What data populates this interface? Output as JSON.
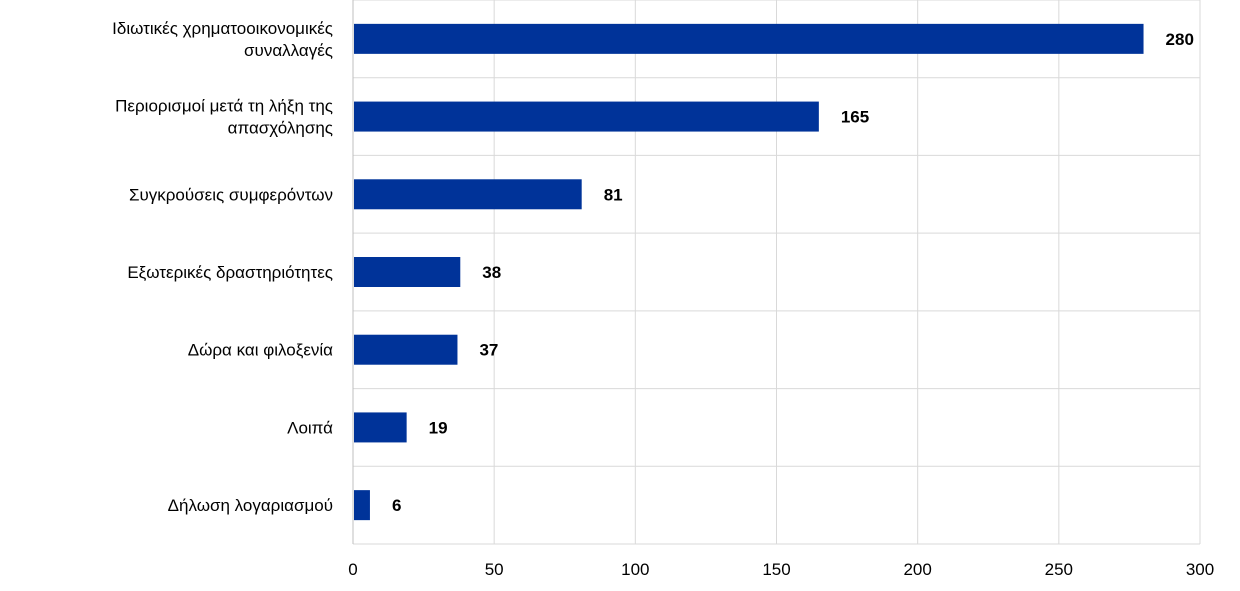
{
  "chart_data": {
    "type": "bar",
    "orientation": "horizontal",
    "categories": [
      [
        "Ιδιωτικές χρηματοοικονομικές",
        "συναλλαγές"
      ],
      [
        "Περιορισμοί μετά τη λήξη της",
        "απασχόλησης"
      ],
      [
        "Συγκρούσεις συμφερόντων"
      ],
      [
        "Εξωτερικές δραστηριότητες"
      ],
      [
        "Δώρα και φιλοξενία"
      ],
      [
        "Λοιπά"
      ],
      [
        "Δήλωση λογαριασμού"
      ]
    ],
    "values": [
      280,
      165,
      81,
      38,
      37,
      19,
      6
    ],
    "data_labels": [
      "280",
      "165",
      "81",
      "38",
      "37",
      "19",
      "6"
    ],
    "xlim": [
      0,
      300
    ],
    "xticks": [
      0,
      50,
      100,
      150,
      200,
      250,
      300
    ],
    "xtick_labels": [
      "0",
      "50",
      "100",
      "150",
      "200",
      "250",
      "300"
    ],
    "grid": true,
    "legend": "none",
    "bar_color": "#003399"
  }
}
